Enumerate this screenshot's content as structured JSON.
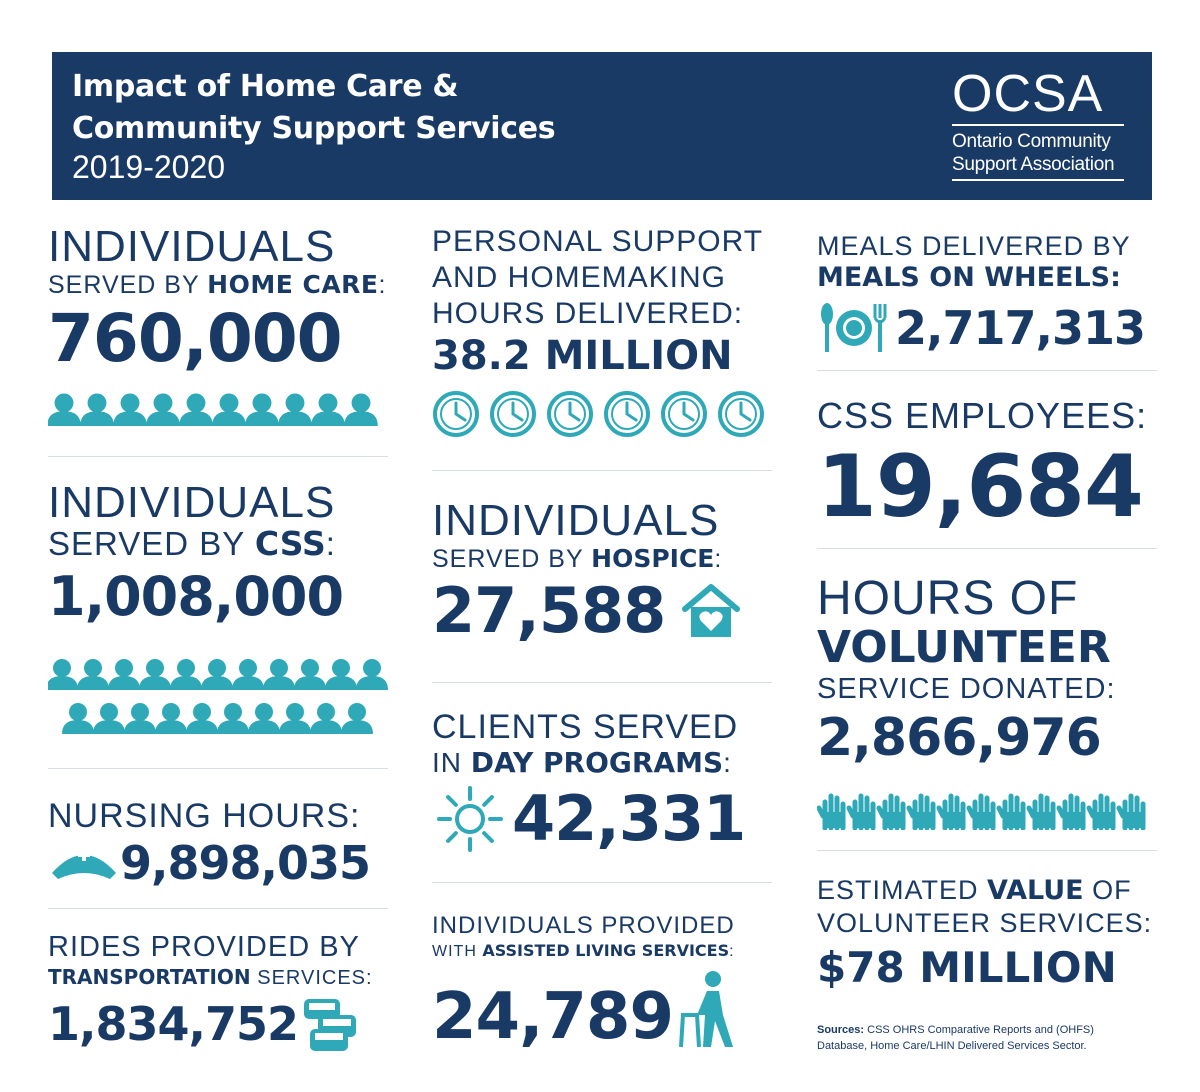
{
  "header": {
    "title_line1": "Impact of Home Care &",
    "title_line2": "Community Support Services",
    "year": "2019-2020",
    "logo_mark": "OCSA",
    "logo_sub1": "Ontario Community",
    "logo_sub2": "Support Association"
  },
  "col1": {
    "home_care": {
      "line1": "INDIVIDUALS",
      "line2_light": "SERVED BY ",
      "line2_bold": "HOME CARE",
      "line2_end": ":",
      "value": "760,000"
    },
    "css": {
      "line1": "INDIVIDUALS",
      "line2_light": "SERVED BY ",
      "line2_bold": "CSS",
      "line2_end": ":",
      "value": "1,008,000"
    },
    "nursing": {
      "label": "NURSING HOURS:",
      "value": "9,898,035"
    },
    "rides": {
      "line1": "RIDES PROVIDED BY",
      "line2_bold": "TRANSPORTATION",
      "line2_light": " SERVICES:",
      "value": "1,834,752"
    }
  },
  "col2": {
    "psw": {
      "line1": "PERSONAL SUPPORT",
      "line2": "AND HOMEMAKING",
      "line3": "HOURS DELIVERED:",
      "value": "38.2 MILLION"
    },
    "hospice": {
      "line1": "INDIVIDUALS",
      "line2_light": "SERVED BY ",
      "line2_bold": "HOSPICE",
      "line2_end": ":",
      "value": "27,588"
    },
    "day": {
      "line1": "CLIENTS SERVED",
      "line2_light": "IN ",
      "line2_bold": "DAY PROGRAMS",
      "line2_end": ":",
      "value": "42,331"
    },
    "assisted": {
      "line1": "INDIVIDUALS PROVIDED",
      "line2_light": "WITH ",
      "line2_bold": "ASSISTED LIVING SERVICES",
      "line2_end": ":",
      "value": "24,789"
    }
  },
  "col3": {
    "meals": {
      "line1": "MEALS DELIVERED BY",
      "line2": "MEALS ON WHEELS:",
      "value": "2,717,313"
    },
    "employees": {
      "label": "CSS EMPLOYEES:",
      "value": "19,684"
    },
    "volunteer": {
      "line1": "HOURS OF",
      "line2": "VOLUNTEER",
      "line3": "SERVICE DONATED:",
      "value": "2,866,976"
    },
    "estimated": {
      "line1_light": "ESTIMATED ",
      "line1_bold": "VALUE",
      "line1_end": " OF",
      "line2": "VOLUNTEER SERVICES:",
      "value": "$78 MILLION"
    },
    "sources": {
      "label": "Sources:",
      "text1": " CSS OHRS Comparative Reports and (OHFS)",
      "text2": "Database, Home Care/LHIN Delivered Services Sector."
    }
  },
  "colors": {
    "navy": "#1a3a66",
    "teal": "#2fa9b8",
    "separator": "#d8dde3"
  }
}
